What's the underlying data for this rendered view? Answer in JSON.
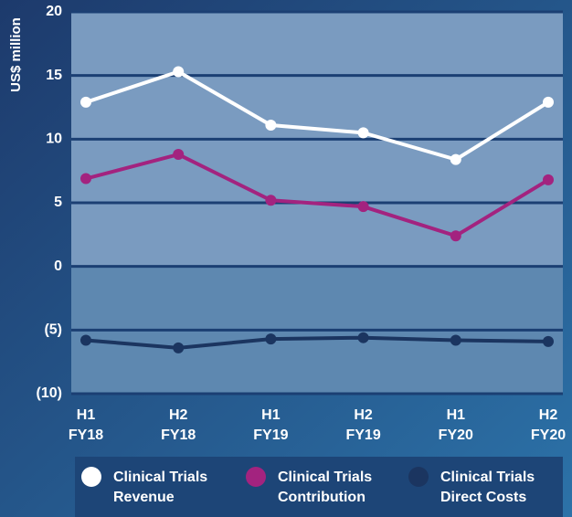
{
  "chart_data": {
    "type": "line",
    "y_label": "US$ million",
    "categories": [
      "H1 FY18",
      "H2 FY18",
      "H1 FY19",
      "H2 FY19",
      "H1 FY20",
      "H2 FY20"
    ],
    "series": [
      {
        "name": "Clinical Trials Revenue",
        "color": "#ffffff",
        "values": [
          12.9,
          15.3,
          11.1,
          10.5,
          8.4,
          12.9
        ]
      },
      {
        "name": "Clinical Trials Contribution",
        "color": "#a3237f",
        "values": [
          6.9,
          8.8,
          5.2,
          4.7,
          2.4,
          6.8
        ]
      },
      {
        "name": "Clinical Trials Direct Costs",
        "color": "#1b3560",
        "values": [
          -5.8,
          -6.4,
          -5.7,
          -5.6,
          -5.8,
          -5.9
        ]
      }
    ],
    "ylim": [
      -10,
      20
    ],
    "yticks": [
      20,
      15,
      10,
      5,
      0,
      {
        "value": -5,
        "label": "(5)"
      },
      {
        "value": -10,
        "label": "(10)"
      }
    ],
    "grid": true,
    "legend": "bottom"
  }
}
